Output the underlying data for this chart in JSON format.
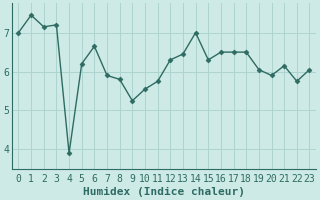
{
  "x": [
    0,
    1,
    2,
    3,
    4,
    5,
    6,
    7,
    8,
    9,
    10,
    11,
    12,
    13,
    14,
    15,
    16,
    17,
    18,
    19,
    20,
    21,
    22,
    23
  ],
  "y": [
    7.0,
    7.45,
    7.15,
    7.2,
    3.9,
    6.2,
    6.65,
    5.9,
    5.8,
    5.25,
    5.55,
    5.75,
    6.3,
    6.45,
    7.0,
    6.3,
    6.5,
    6.5,
    6.5,
    6.05,
    5.9,
    6.15,
    5.75,
    6.05
  ],
  "line_color": "#2e6b62",
  "marker": "D",
  "marker_size": 2.5,
  "bg_color": "#ceeae6",
  "grid_color": "#aed4d0",
  "xlabel": "Humidex (Indice chaleur)",
  "xlim": [
    -0.5,
    23.5
  ],
  "ylim": [
    3.5,
    7.75
  ],
  "yticks": [
    4,
    5,
    6,
    7
  ],
  "xlabel_fontsize": 8,
  "tick_fontsize": 7
}
